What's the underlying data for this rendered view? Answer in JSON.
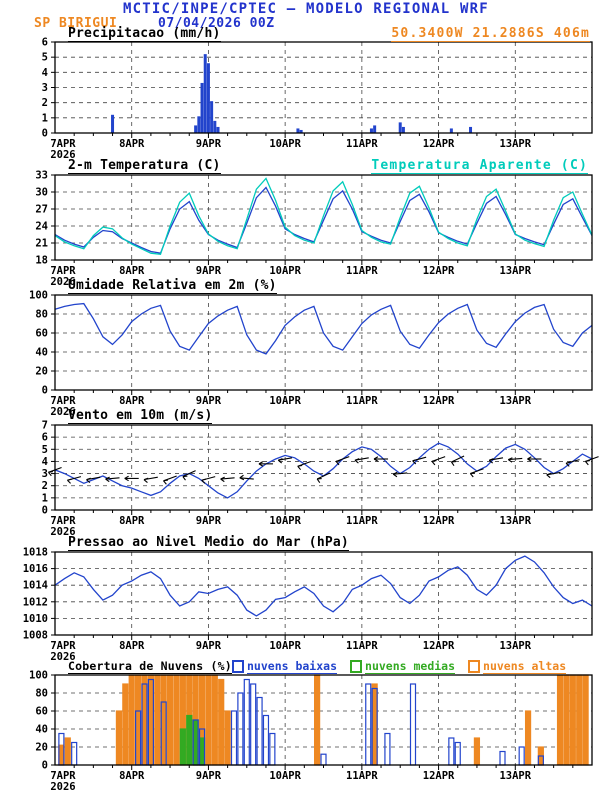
{
  "header": {
    "title": "MCTIC/INPE/CPTEC — MODELO REGIONAL WRF",
    "station": "SP BIRIGUI",
    "run": "07/04/2026 00Z",
    "coords": "50.3400W 21.2886S 406m"
  },
  "colors": {
    "title_blue": "#2233cc",
    "orange": "#ee8822",
    "cyan": "#00ccbb",
    "line_blue": "#2244cc",
    "green": "#33aa22"
  },
  "x_axis": {
    "labels": [
      "7APR",
      "8APR",
      "9APR",
      "10APR",
      "11APR",
      "12APR",
      "13APR"
    ],
    "year": "2026",
    "label_interval_hours": 24,
    "total_hours": 168
  },
  "chart_data": [
    {
      "id": "precipitation",
      "type": "bar",
      "title": "Precipitacao (mm/h)",
      "ylim": [
        0,
        6
      ],
      "yticks": [
        0,
        1,
        2,
        3,
        4,
        5,
        6
      ],
      "color": "#2244cc",
      "bars": [
        [
          18,
          1.2
        ],
        [
          44,
          0.5
        ],
        [
          45,
          1.1
        ],
        [
          46,
          3.3
        ],
        [
          47,
          5.2
        ],
        [
          48,
          4.6
        ],
        [
          49,
          2.1
        ],
        [
          50,
          0.8
        ],
        [
          51,
          0.4
        ],
        [
          76,
          0.3
        ],
        [
          77,
          0.2
        ],
        [
          99,
          0.3
        ],
        [
          100,
          0.5
        ],
        [
          108,
          0.7
        ],
        [
          109,
          0.4
        ],
        [
          124,
          0.3
        ],
        [
          130,
          0.4
        ]
      ]
    },
    {
      "id": "temperature",
      "type": "line",
      "title": "2-m Temperatura (C)",
      "title2": "Temperatura Aparente (C)",
      "ylim": [
        18,
        33
      ],
      "yticks": [
        18,
        21,
        24,
        27,
        30,
        33
      ],
      "x_step": 3,
      "series": [
        {
          "name": "2-m Temperatura (C)",
          "color": "#2244cc",
          "values": [
            22.5,
            21.5,
            20.8,
            20.3,
            22.0,
            23.2,
            23.0,
            21.8,
            21.0,
            20.2,
            19.5,
            19.2,
            23.5,
            27.0,
            28.3,
            25.0,
            22.5,
            21.5,
            20.8,
            20.2,
            24.5,
            29.0,
            30.8,
            27.5,
            23.5,
            22.5,
            21.8,
            21.2,
            25.0,
            28.8,
            30.2,
            27.0,
            23.0,
            22.2,
            21.5,
            21.0,
            24.8,
            28.5,
            29.6,
            26.5,
            22.8,
            22.0,
            21.3,
            20.8,
            24.5,
            28.0,
            29.2,
            26.0,
            22.5,
            21.8,
            21.2,
            20.7,
            24.3,
            27.8,
            28.8,
            25.5,
            22.3
          ]
        },
        {
          "name": "Temperatura Aparente (C)",
          "color": "#00ccbb",
          "values": [
            22.3,
            21.2,
            20.5,
            20.0,
            22.3,
            23.8,
            23.5,
            21.9,
            20.8,
            20.0,
            19.2,
            19.0,
            24.0,
            28.2,
            29.8,
            25.8,
            22.6,
            21.3,
            20.5,
            20.0,
            25.2,
            30.5,
            32.4,
            28.5,
            23.8,
            22.3,
            21.5,
            21.0,
            25.8,
            30.2,
            31.8,
            27.8,
            23.2,
            22.0,
            21.2,
            20.8,
            25.5,
            29.8,
            31.0,
            27.2,
            22.9,
            21.8,
            21.0,
            20.5,
            25.2,
            29.2,
            30.5,
            26.6,
            22.6,
            21.5,
            20.9,
            20.4,
            25.0,
            29.0,
            30.0,
            26.1,
            22.4
          ]
        }
      ]
    },
    {
      "id": "humidity",
      "type": "line",
      "title": "Umidade Relativa em 2m (%)",
      "ylim": [
        0,
        100
      ],
      "yticks": [
        0,
        20,
        40,
        60,
        80,
        100
      ],
      "x_step": 3,
      "series": [
        {
          "name": "Umidade Relativa em 2m",
          "color": "#2244cc",
          "values": [
            85,
            88,
            90,
            91,
            75,
            56,
            48,
            58,
            72,
            80,
            86,
            89,
            62,
            46,
            42,
            56,
            70,
            78,
            84,
            88,
            58,
            42,
            38,
            52,
            68,
            77,
            84,
            88,
            60,
            46,
            42,
            56,
            70,
            79,
            85,
            89,
            62,
            48,
            44,
            58,
            71,
            80,
            86,
            90,
            63,
            49,
            45,
            59,
            72,
            81,
            87,
            90,
            64,
            50,
            46,
            60,
            68
          ]
        }
      ]
    },
    {
      "id": "wind",
      "type": "wind",
      "title": "Vento em 10m (m/s)",
      "ylim": [
        0,
        7
      ],
      "yticks": [
        0,
        1,
        2,
        3,
        4,
        5,
        6,
        7
      ],
      "x_step": 3,
      "dir_step": 6,
      "series": [
        {
          "name": "Vento em 10m",
          "color": "#2244cc",
          "values": [
            3.3,
            3.0,
            2.6,
            2.2,
            2.5,
            2.8,
            2.4,
            2.0,
            1.8,
            1.5,
            1.2,
            1.5,
            2.2,
            2.8,
            3.0,
            2.6,
            2.0,
            1.4,
            1.0,
            1.5,
            2.4,
            3.2,
            3.8,
            4.2,
            4.5,
            4.3,
            3.8,
            3.2,
            2.8,
            3.4,
            4.2,
            4.8,
            5.2,
            5.0,
            4.4,
            3.6,
            3.0,
            3.5,
            4.3,
            5.0,
            5.5,
            5.2,
            4.6,
            3.8,
            3.2,
            3.6,
            4.4,
            5.1,
            5.4,
            5.0,
            4.3,
            3.5,
            3.0,
            3.4,
            4.0,
            4.6,
            4.2
          ]
        }
      ],
      "dirs_deg_from": [
        70,
        75,
        80,
        85,
        90,
        80,
        70,
        65,
        75,
        85,
        95,
        90,
        80,
        70,
        65,
        70,
        80,
        90,
        85,
        75,
        70,
        65,
        70,
        80,
        85,
        90,
        80,
        75,
        70
      ]
    },
    {
      "id": "pressure",
      "type": "line",
      "title": "Pressao ao Nivel Medio do Mar (hPa)",
      "ylim": [
        1008,
        1018
      ],
      "yticks": [
        1008,
        1010,
        1012,
        1014,
        1016,
        1018
      ],
      "x_step": 3,
      "series": [
        {
          "name": "Pressao ao Nivel Medio do Mar",
          "color": "#2244cc",
          "values": [
            1014.0,
            1014.8,
            1015.5,
            1015.0,
            1013.5,
            1012.2,
            1012.8,
            1014.0,
            1014.5,
            1015.2,
            1015.6,
            1014.8,
            1012.8,
            1011.5,
            1012.0,
            1013.2,
            1013.0,
            1013.5,
            1013.8,
            1012.8,
            1011.0,
            1010.3,
            1011.0,
            1012.3,
            1012.5,
            1013.2,
            1013.8,
            1013.0,
            1011.5,
            1010.8,
            1011.8,
            1013.5,
            1014.0,
            1014.8,
            1015.2,
            1014.2,
            1012.5,
            1011.8,
            1012.8,
            1014.5,
            1015.0,
            1015.8,
            1016.2,
            1015.2,
            1013.5,
            1012.8,
            1014.0,
            1016.0,
            1017.0,
            1017.5,
            1016.8,
            1015.5,
            1013.8,
            1012.5,
            1011.8,
            1012.2,
            1011.5
          ]
        }
      ]
    },
    {
      "id": "clouds",
      "type": "clouds",
      "title": "Cobertura de Nuvens (%)",
      "ylim": [
        0,
        100
      ],
      "yticks": [
        0,
        20,
        40,
        60,
        80,
        100
      ],
      "legend": [
        {
          "label": "nuvens baixas",
          "color": "#2244cc"
        },
        {
          "label": "nuvens medias",
          "color": "#33aa22"
        },
        {
          "label": "nuvens altas",
          "color": "#ee8822"
        }
      ],
      "series": [
        {
          "name": "nuvens altas",
          "color": "#ee8822",
          "fill": "solid",
          "points": [
            [
              2,
              22
            ],
            [
              4,
              30
            ],
            [
              20,
              60
            ],
            [
              22,
              90
            ],
            [
              24,
              100
            ],
            [
              26,
              100
            ],
            [
              28,
              100
            ],
            [
              30,
              100
            ],
            [
              32,
              100
            ],
            [
              34,
              100
            ],
            [
              36,
              100
            ],
            [
              38,
              100
            ],
            [
              40,
              100
            ],
            [
              42,
              100
            ],
            [
              44,
              100
            ],
            [
              46,
              100
            ],
            [
              48,
              100
            ],
            [
              50,
              100
            ],
            [
              52,
              95
            ],
            [
              54,
              60
            ],
            [
              82,
              100
            ],
            [
              100,
              90
            ],
            [
              132,
              30
            ],
            [
              148,
              60
            ],
            [
              152,
              20
            ],
            [
              158,
              100
            ],
            [
              160,
              100
            ],
            [
              162,
              100
            ],
            [
              164,
              100
            ],
            [
              166,
              100
            ]
          ]
        },
        {
          "name": "nuvens medias",
          "color": "#33aa22",
          "fill": "solid",
          "points": [
            [
              40,
              40
            ],
            [
              42,
              55
            ],
            [
              44,
              50
            ],
            [
              46,
              30
            ]
          ]
        },
        {
          "name": "nuvens baixas",
          "color": "#2244cc",
          "fill": "open",
          "points": [
            [
              2,
              35
            ],
            [
              6,
              25
            ],
            [
              26,
              60
            ],
            [
              28,
              90
            ],
            [
              30,
              95
            ],
            [
              34,
              70
            ],
            [
              44,
              50
            ],
            [
              46,
              40
            ],
            [
              56,
              60
            ],
            [
              58,
              80
            ],
            [
              60,
              95
            ],
            [
              62,
              90
            ],
            [
              64,
              75
            ],
            [
              66,
              55
            ],
            [
              68,
              35
            ],
            [
              84,
              12
            ],
            [
              98,
              90
            ],
            [
              100,
              85
            ],
            [
              104,
              35
            ],
            [
              112,
              90
            ],
            [
              124,
              30
            ],
            [
              126,
              25
            ],
            [
              140,
              15
            ],
            [
              146,
              20
            ],
            [
              152,
              10
            ]
          ]
        }
      ]
    }
  ]
}
